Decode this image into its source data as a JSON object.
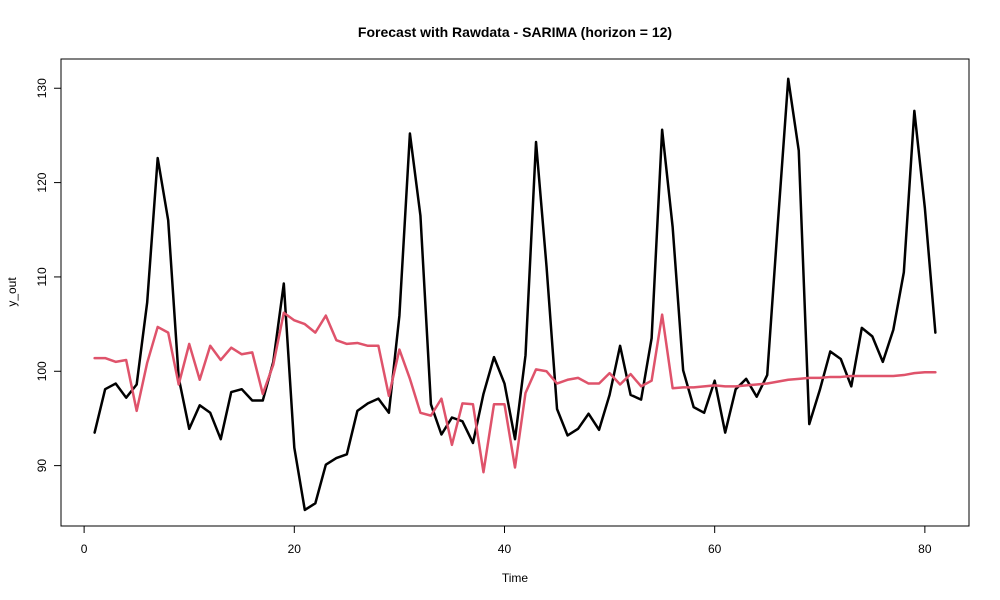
{
  "chart_data": {
    "type": "line",
    "title": "Forecast with Rawdata - SARIMA (horizon = 12)",
    "xlabel": "Time",
    "ylabel": "y_out",
    "xlim": [
      -2.2,
      84.2
    ],
    "ylim": [
      83.6,
      133.1
    ],
    "xticks": [
      0,
      20,
      40,
      60,
      80
    ],
    "yticks": [
      90,
      100,
      110,
      120,
      130
    ],
    "x": [
      1,
      2,
      3,
      4,
      5,
      6,
      7,
      8,
      9,
      10,
      11,
      12,
      13,
      14,
      15,
      16,
      17,
      18,
      19,
      20,
      21,
      22,
      23,
      24,
      25,
      26,
      27,
      28,
      29,
      30,
      31,
      32,
      33,
      34,
      35,
      36,
      37,
      38,
      39,
      40,
      41,
      42,
      43,
      44,
      45,
      46,
      47,
      48,
      49,
      50,
      51,
      52,
      53,
      54,
      55,
      56,
      57,
      58,
      59,
      60,
      61,
      62,
      63,
      64,
      65,
      66,
      67,
      68,
      69,
      70,
      71,
      72,
      73,
      74,
      75,
      76,
      77,
      78,
      79,
      80,
      81
    ],
    "series": [
      {
        "color": "#000000",
        "values": [
          93.5,
          98.1,
          98.7,
          97.2,
          98.6,
          107.3,
          122.6,
          116.0,
          99.3,
          93.9,
          96.4,
          95.6,
          92.8,
          97.8,
          98.1,
          96.9,
          96.9,
          101.0,
          109.3,
          91.9,
          85.3,
          86.0,
          90.1,
          90.8,
          91.2,
          95.8,
          96.6,
          97.1,
          95.6,
          105.9,
          125.2,
          116.5,
          96.5,
          93.3,
          95.1,
          94.7,
          92.4,
          97.6,
          101.5,
          98.7,
          92.8,
          101.7,
          124.3,
          111.1,
          96.0,
          93.2,
          93.9,
          95.5,
          93.8,
          97.5,
          102.7,
          97.5,
          97.0,
          103.5,
          125.6,
          115.3,
          100.1,
          96.2,
          95.6,
          99.0,
          93.5,
          98.1,
          99.2,
          97.3,
          99.6,
          115.5,
          131.0,
          123.4,
          94.4,
          98.0,
          102.1,
          101.3,
          98.4,
          104.6,
          103.7,
          101.0,
          104.4,
          110.5,
          127.6,
          117.3,
          104.1
        ]
      },
      {
        "color": "#DF536B",
        "values": [
          101.4,
          101.4,
          101.0,
          101.2,
          95.8,
          100.9,
          104.7,
          104.1,
          98.6,
          102.9,
          99.1,
          102.7,
          101.2,
          102.5,
          101.8,
          102.0,
          97.6,
          100.7,
          106.2,
          105.4,
          105.0,
          104.1,
          105.9,
          103.3,
          102.9,
          103.0,
          102.7,
          102.7,
          97.4,
          102.3,
          99.2,
          95.6,
          95.3,
          97.1,
          92.2,
          96.6,
          96.5,
          89.3,
          96.5,
          96.5,
          89.8,
          97.7,
          100.2,
          100.0,
          98.7,
          99.1,
          99.3,
          98.7,
          98.7,
          99.8,
          98.6,
          99.7,
          98.4,
          99.0,
          106.0,
          98.2,
          98.3,
          98.3,
          98.4,
          98.5,
          98.4,
          98.4,
          98.5,
          98.6,
          98.7,
          98.9,
          99.1,
          99.2,
          99.3,
          99.3,
          99.4,
          99.4,
          99.5,
          99.5,
          99.5,
          99.5,
          99.5,
          99.6,
          99.8,
          99.9,
          99.9
        ]
      }
    ],
    "grid": false,
    "legend": "none"
  }
}
